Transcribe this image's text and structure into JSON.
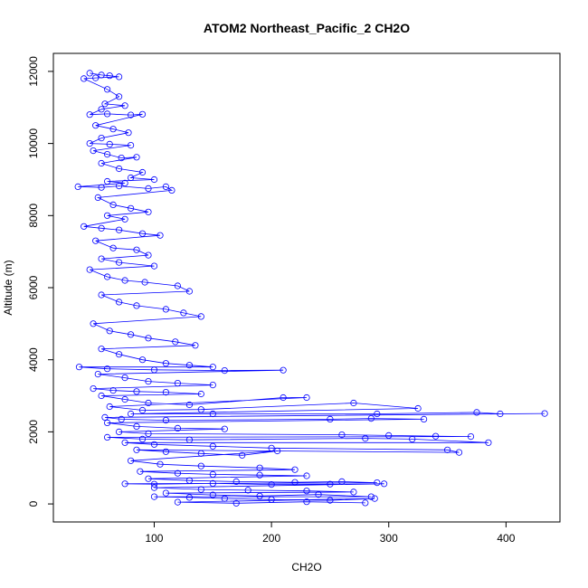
{
  "chart_data": {
    "type": "scatter",
    "title": "ATOM2 Northeast_Pacific_2 CH2O",
    "xlabel": "CH2O",
    "ylabel": "Altitude (m)",
    "xlim": [
      14,
      446
    ],
    "ylim": [
      -500,
      12500
    ],
    "xticks": [
      100,
      200,
      300,
      400
    ],
    "yticks": [
      0,
      2000,
      4000,
      6000,
      8000,
      10000,
      12000
    ],
    "grid": false,
    "legend": "none",
    "series": [
      {
        "style": "points-and-lines",
        "color": "#0000ff",
        "points": [
          [
            45,
            11950
          ],
          [
            55,
            11900
          ],
          [
            62,
            11880
          ],
          [
            70,
            11850
          ],
          [
            50,
            11820
          ],
          [
            40,
            11800
          ],
          [
            60,
            11500
          ],
          [
            70,
            11300
          ],
          [
            58,
            11100
          ],
          [
            75,
            11050
          ],
          [
            55,
            10950
          ],
          [
            45,
            10800
          ],
          [
            60,
            10820
          ],
          [
            80,
            10790
          ],
          [
            90,
            10810
          ],
          [
            50,
            10500
          ],
          [
            65,
            10400
          ],
          [
            78,
            10300
          ],
          [
            55,
            10150
          ],
          [
            45,
            10000
          ],
          [
            62,
            9980
          ],
          [
            80,
            9950
          ],
          [
            48,
            9800
          ],
          [
            60,
            9700
          ],
          [
            72,
            9600
          ],
          [
            85,
            9620
          ],
          [
            55,
            9450
          ],
          [
            70,
            9300
          ],
          [
            90,
            9200
          ],
          [
            80,
            9050
          ],
          [
            100,
            9000
          ],
          [
            60,
            8950
          ],
          [
            75,
            8900
          ],
          [
            35,
            8800
          ],
          [
            55,
            8780
          ],
          [
            70,
            8820
          ],
          [
            95,
            8750
          ],
          [
            110,
            8800
          ],
          [
            115,
            8700
          ],
          [
            52,
            8500
          ],
          [
            65,
            8300
          ],
          [
            80,
            8200
          ],
          [
            95,
            8100
          ],
          [
            60,
            8000
          ],
          [
            75,
            7900
          ],
          [
            40,
            7700
          ],
          [
            55,
            7650
          ],
          [
            70,
            7600
          ],
          [
            90,
            7500
          ],
          [
            105,
            7450
          ],
          [
            50,
            7300
          ],
          [
            65,
            7100
          ],
          [
            85,
            7050
          ],
          [
            95,
            6900
          ],
          [
            55,
            6800
          ],
          [
            70,
            6700
          ],
          [
            100,
            6600
          ],
          [
            45,
            6500
          ],
          [
            60,
            6300
          ],
          [
            75,
            6200
          ],
          [
            92,
            6150
          ],
          [
            120,
            6050
          ],
          [
            130,
            5900
          ],
          [
            55,
            5800
          ],
          [
            70,
            5600
          ],
          [
            85,
            5500
          ],
          [
            110,
            5400
          ],
          [
            125,
            5300
          ],
          [
            140,
            5200
          ],
          [
            48,
            5000
          ],
          [
            62,
            4800
          ],
          [
            80,
            4700
          ],
          [
            95,
            4600
          ],
          [
            118,
            4500
          ],
          [
            135,
            4400
          ],
          [
            55,
            4300
          ],
          [
            70,
            4150
          ],
          [
            90,
            4000
          ],
          [
            110,
            3900
          ],
          [
            130,
            3850
          ],
          [
            150,
            3800
          ],
          [
            36,
            3800
          ],
          [
            60,
            3750
          ],
          [
            100,
            3720
          ],
          [
            160,
            3700
          ],
          [
            210,
            3710
          ],
          [
            52,
            3600
          ],
          [
            75,
            3500
          ],
          [
            95,
            3400
          ],
          [
            120,
            3350
          ],
          [
            150,
            3300
          ],
          [
            48,
            3200
          ],
          [
            65,
            3150
          ],
          [
            85,
            3120
          ],
          [
            110,
            3100
          ],
          [
            140,
            3050
          ],
          [
            55,
            3000
          ],
          [
            75,
            2900
          ],
          [
            95,
            2800
          ],
          [
            130,
            2750
          ],
          [
            210,
            2950
          ],
          [
            230,
            2950
          ],
          [
            62,
            2700
          ],
          [
            90,
            2600
          ],
          [
            140,
            2620
          ],
          [
            270,
            2800
          ],
          [
            325,
            2650
          ],
          [
            80,
            2500
          ],
          [
            150,
            2500
          ],
          [
            290,
            2500
          ],
          [
            375,
            2540
          ],
          [
            395,
            2500
          ],
          [
            433,
            2510
          ],
          [
            58,
            2400
          ],
          [
            72,
            2350
          ],
          [
            110,
            2320
          ],
          [
            250,
            2350
          ],
          [
            285,
            2370
          ],
          [
            330,
            2350
          ],
          [
            60,
            2250
          ],
          [
            85,
            2150
          ],
          [
            120,
            2100
          ],
          [
            160,
            2080
          ],
          [
            70,
            2000
          ],
          [
            95,
            1950
          ],
          [
            260,
            1920
          ],
          [
            300,
            1900
          ],
          [
            340,
            1880
          ],
          [
            370,
            1870
          ],
          [
            60,
            1850
          ],
          [
            90,
            1800
          ],
          [
            130,
            1780
          ],
          [
            280,
            1820
          ],
          [
            320,
            1800
          ],
          [
            385,
            1700
          ],
          [
            75,
            1700
          ],
          [
            100,
            1650
          ],
          [
            150,
            1600
          ],
          [
            200,
            1550
          ],
          [
            350,
            1500
          ],
          [
            360,
            1430
          ],
          [
            85,
            1500
          ],
          [
            110,
            1450
          ],
          [
            140,
            1400
          ],
          [
            175,
            1350
          ],
          [
            205,
            1470
          ],
          [
            80,
            1200
          ],
          [
            105,
            1100
          ],
          [
            140,
            1050
          ],
          [
            190,
            1000
          ],
          [
            220,
            950
          ],
          [
            88,
            900
          ],
          [
            120,
            850
          ],
          [
            150,
            820
          ],
          [
            190,
            800
          ],
          [
            230,
            780
          ],
          [
            95,
            700
          ],
          [
            130,
            650
          ],
          [
            170,
            620
          ],
          [
            220,
            600
          ],
          [
            260,
            620
          ],
          [
            290,
            590
          ],
          [
            75,
            560
          ],
          [
            100,
            550
          ],
          [
            150,
            570
          ],
          [
            200,
            540
          ],
          [
            250,
            550
          ],
          [
            296,
            560
          ],
          [
            100,
            450
          ],
          [
            140,
            400
          ],
          [
            180,
            380
          ],
          [
            230,
            360
          ],
          [
            270,
            330
          ],
          [
            110,
            300
          ],
          [
            150,
            250
          ],
          [
            190,
            220
          ],
          [
            240,
            260
          ],
          [
            285,
            200
          ],
          [
            100,
            200
          ],
          [
            130,
            180
          ],
          [
            160,
            150
          ],
          [
            200,
            120
          ],
          [
            250,
            100
          ],
          [
            288,
            150
          ],
          [
            120,
            50
          ],
          [
            170,
            20
          ],
          [
            230,
            60
          ],
          [
            280,
            30
          ]
        ]
      }
    ]
  }
}
